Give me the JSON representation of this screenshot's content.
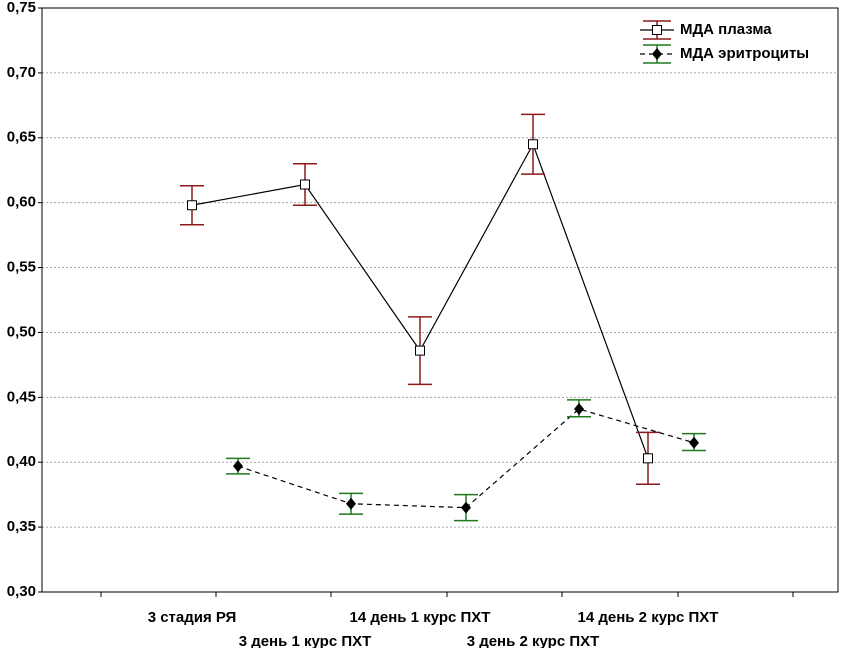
{
  "chart_data": {
    "type": "line",
    "title": "",
    "xlabel": "",
    "ylabel": "",
    "ylim": [
      0.3,
      0.75
    ],
    "yticks": [
      "0,30",
      "0,35",
      "0,40",
      "0,45",
      "0,50",
      "0,55",
      "0,60",
      "0,65",
      "0,70",
      "0,75"
    ],
    "categories": [
      "3 стадия РЯ",
      "3 день 1 курс ПХТ",
      "14 день 1 курс ПХТ",
      "3 день 2 курс ПХТ",
      "14 день 2 курс ПХТ"
    ],
    "grid": true,
    "legend_position": "top-right",
    "series": [
      {
        "name": "МДА плазма",
        "marker": "open-square",
        "line": "solid",
        "line_color": "#000000",
        "error_color": "#8b1a1a",
        "values": [
          0.598,
          0.614,
          0.486,
          0.645,
          0.403
        ],
        "err_low": [
          0.583,
          0.598,
          0.46,
          0.622,
          0.383
        ],
        "err_high": [
          0.613,
          0.63,
          0.512,
          0.668,
          0.423
        ]
      },
      {
        "name": "МДА эритроциты",
        "marker": "filled-diamond",
        "line": "dashed",
        "line_color": "#000000",
        "error_color": "#1f7a1f",
        "values": [
          0.397,
          0.368,
          0.365,
          0.441,
          0.415
        ],
        "err_low": [
          0.391,
          0.36,
          0.355,
          0.435,
          0.409
        ],
        "err_high": [
          0.403,
          0.376,
          0.375,
          0.448,
          0.422
        ]
      }
    ]
  }
}
